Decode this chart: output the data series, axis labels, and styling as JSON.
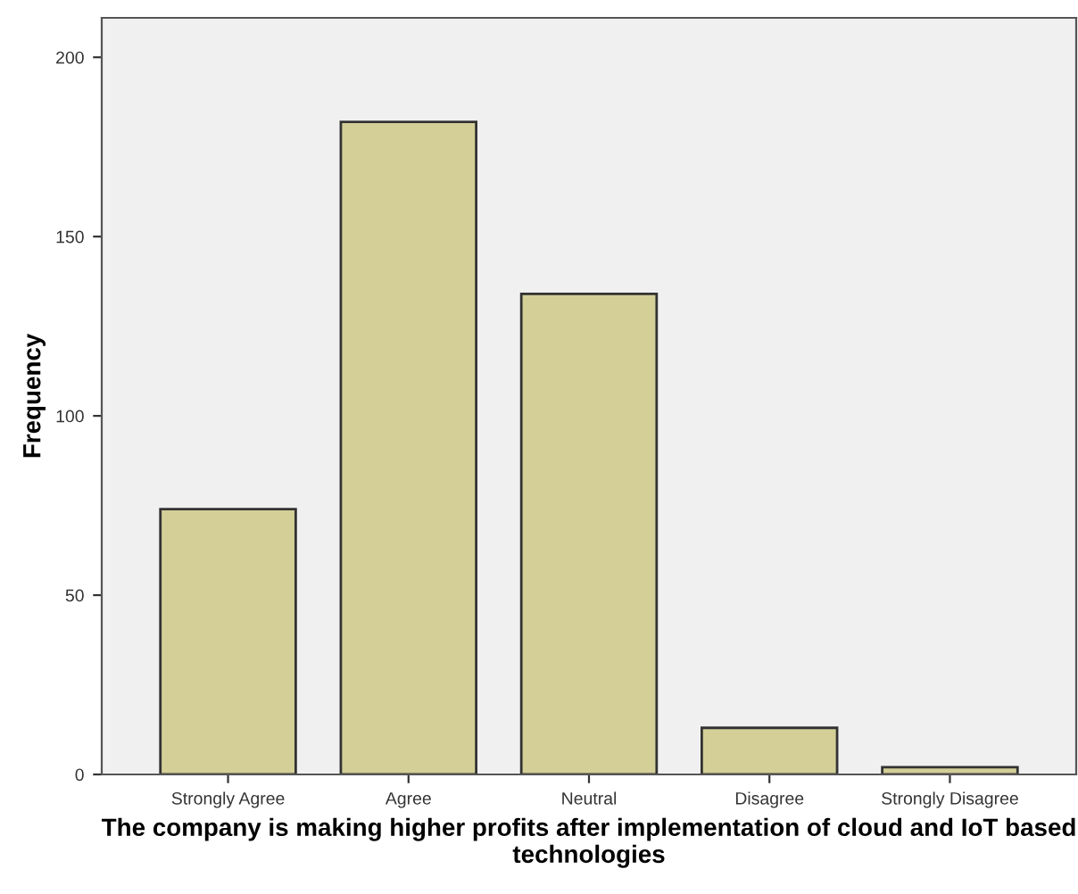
{
  "chart_data": {
    "type": "bar",
    "xlabel": "The company is making higher profits after implementation of cloud and IoT based technologies",
    "ylabel": "Frequency",
    "categories": [
      "Strongly Agree",
      "Agree",
      "Neutral",
      "Disagree",
      "Strongly Disagree"
    ],
    "values": [
      74,
      182,
      134,
      13,
      2
    ],
    "color": "#d3cf97",
    "ylim": [
      0,
      211
    ],
    "yticks": [
      0,
      50,
      100,
      150,
      200
    ],
    "grid": false
  }
}
